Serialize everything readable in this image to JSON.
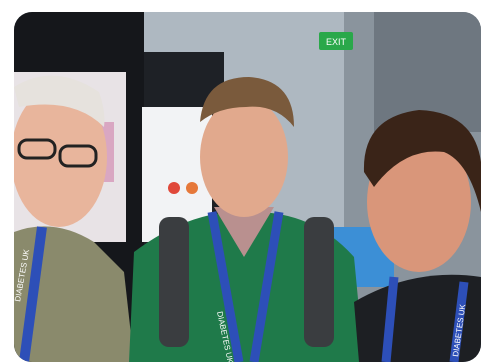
{
  "photo": {
    "description_kind": "selfie-photo",
    "lanyard_text_left": "DIABETES UK",
    "lanyard_text_center": "DIABETES UK",
    "lanyard_text_right": "DIABETES UK",
    "exit_sign_text": "EXIT",
    "colors": {
      "background_hall": "#b9c3cc",
      "poster_board": "#1b1d22",
      "lanyard": "#2d4fb8",
      "sweater_green": "#1f7a4a",
      "jacket_olive": "#8a8a6c",
      "exit_green": "#2aa84a"
    }
  }
}
